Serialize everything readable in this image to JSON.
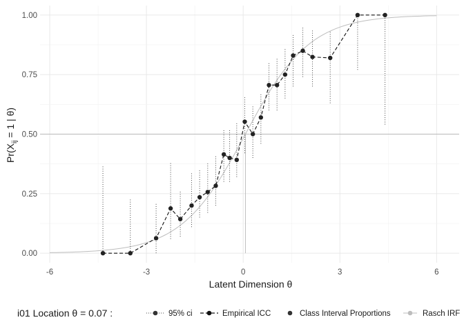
{
  "chart_data": {
    "type": "line",
    "xlabel": "Latent Dimension θ",
    "ylabel": "Pr(X_ij = 1 | θ)",
    "x_ticks": [
      -6,
      -3,
      0,
      3,
      6
    ],
    "x_tick_labels": [
      "-6",
      "-3",
      "0",
      "3",
      "6"
    ],
    "y_ticks": [
      0,
      0.25,
      0.5,
      0.75,
      1
    ],
    "y_tick_labels": [
      "0.00",
      "0.25",
      "0.50",
      "0.75",
      "1.00"
    ],
    "xlim": [
      -6.3,
      6.7
    ],
    "ylim": [
      -0.04,
      1.04
    ],
    "grid": true,
    "legend_position": "bottom",
    "legend_title": "i01 Location  θ = 0.07 :",
    "location": 0.07,
    "reference_lines": {
      "horizontal_y": 0.5,
      "vertical_x": 0.07
    },
    "series": [
      {
        "name": "95% ci",
        "style": "dotted-vertical-intervals",
        "intervals": [
          {
            "x": -4.35,
            "low": 0.0,
            "high": 0.37
          },
          {
            "x": -3.5,
            "low": 0.0,
            "high": 0.23
          },
          {
            "x": -2.7,
            "low": 0.0,
            "high": 0.21
          },
          {
            "x": -2.25,
            "low": 0.06,
            "high": 0.38
          },
          {
            "x": -1.95,
            "low": 0.07,
            "high": 0.26
          },
          {
            "x": -1.6,
            "low": 0.11,
            "high": 0.34
          },
          {
            "x": -1.35,
            "low": 0.15,
            "high": 0.35
          },
          {
            "x": -1.1,
            "low": 0.17,
            "high": 0.38
          },
          {
            "x": -0.85,
            "low": 0.2,
            "high": 0.41
          },
          {
            "x": -0.6,
            "low": 0.3,
            "high": 0.52
          },
          {
            "x": -0.42,
            "low": 0.3,
            "high": 0.52
          },
          {
            "x": -0.2,
            "low": 0.32,
            "high": 0.55
          },
          {
            "x": 0.05,
            "low": 0.42,
            "high": 0.66
          },
          {
            "x": 0.3,
            "low": 0.4,
            "high": 0.62
          },
          {
            "x": 0.55,
            "low": 0.46,
            "high": 0.67
          },
          {
            "x": 0.8,
            "low": 0.6,
            "high": 0.8
          },
          {
            "x": 1.05,
            "low": 0.6,
            "high": 0.82
          },
          {
            "x": 1.3,
            "low": 0.65,
            "high": 0.86
          },
          {
            "x": 1.55,
            "low": 0.7,
            "high": 0.92
          },
          {
            "x": 1.85,
            "low": 0.74,
            "high": 0.95
          },
          {
            "x": 2.15,
            "low": 0.7,
            "high": 0.94
          },
          {
            "x": 2.7,
            "low": 0.63,
            "high": 0.93
          },
          {
            "x": 3.55,
            "low": 0.77,
            "high": 1.0
          },
          {
            "x": 4.4,
            "low": 0.54,
            "high": 1.0
          }
        ]
      },
      {
        "name": "Empirical ICC",
        "style": "dashed-line",
        "x_ref": "Class Interval Proportions"
      },
      {
        "name": "Class Interval Proportions",
        "style": "points",
        "x": [
          -4.35,
          -3.5,
          -2.7,
          -2.25,
          -1.95,
          -1.6,
          -1.35,
          -1.1,
          -0.85,
          -0.6,
          -0.42,
          -0.2,
          0.05,
          0.3,
          0.55,
          0.8,
          1.05,
          1.3,
          1.55,
          1.85,
          2.15,
          2.7,
          3.55,
          4.4
        ],
        "values": [
          0.0,
          0.0,
          0.063,
          0.188,
          0.143,
          0.2,
          0.235,
          0.257,
          0.283,
          0.415,
          0.4,
          0.392,
          0.552,
          0.5,
          0.57,
          0.706,
          0.706,
          0.75,
          0.83,
          0.85,
          0.824,
          0.82,
          1.0,
          1.0
        ]
      },
      {
        "name": "Rasch IRF",
        "style": "solid-grey-curve",
        "model": "logistic",
        "location": 0.07
      }
    ]
  }
}
